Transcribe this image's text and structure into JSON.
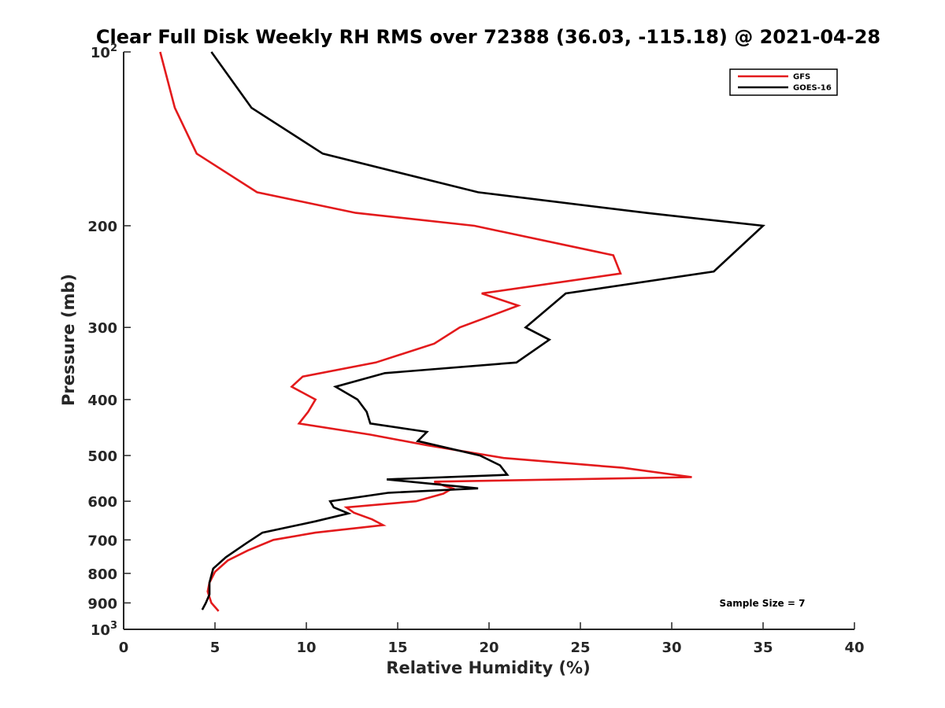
{
  "chart_data": {
    "type": "line",
    "title": "Clear Full Disk Weekly RH RMS over 72388 (36.03, -115.18) @ 2021-04-28",
    "xlabel": "Relative Humidity (%)",
    "ylabel": "Pressure (mb)",
    "xlim": [
      0,
      40
    ],
    "ylim": [
      100,
      1000
    ],
    "y_scale": "log",
    "y_reversed": true,
    "grid": false,
    "legend_position": "top-right",
    "x_ticks": [
      0,
      5,
      10,
      15,
      20,
      25,
      30,
      35,
      40
    ],
    "x_tick_labels": [
      "0",
      "5",
      "10",
      "15",
      "20",
      "25",
      "30",
      "35",
      "40"
    ],
    "y_ticks": [
      {
        "value": 100,
        "base": "10",
        "exp": "2"
      },
      {
        "value": 200,
        "base": "200",
        "exp": ""
      },
      {
        "value": 300,
        "base": "300",
        "exp": ""
      },
      {
        "value": 400,
        "base": "400",
        "exp": ""
      },
      {
        "value": 500,
        "base": "500",
        "exp": ""
      },
      {
        "value": 600,
        "base": "600",
        "exp": ""
      },
      {
        "value": 700,
        "base": "700",
        "exp": ""
      },
      {
        "value": 800,
        "base": "800",
        "exp": ""
      },
      {
        "value": 900,
        "base": "900",
        "exp": ""
      },
      {
        "value": 1000,
        "base": "10",
        "exp": "3"
      }
    ],
    "annotation": "Sample Size = 7",
    "series": [
      {
        "name": "GFS",
        "color": "#e31a1c",
        "points": [
          [
            2.0,
            100
          ],
          [
            2.8,
            125
          ],
          [
            4.0,
            150
          ],
          [
            7.3,
            175
          ],
          [
            12.7,
            190
          ],
          [
            19.2,
            200
          ],
          [
            26.8,
            225
          ],
          [
            27.2,
            242
          ],
          [
            19.6,
            262
          ],
          [
            21.6,
            275
          ],
          [
            18.4,
            300
          ],
          [
            17.0,
            320
          ],
          [
            13.8,
            345
          ],
          [
            9.8,
            365
          ],
          [
            9.2,
            380
          ],
          [
            10.5,
            400
          ],
          [
            10.1,
            420
          ],
          [
            9.6,
            440
          ],
          [
            13.5,
            460
          ],
          [
            16.6,
            480
          ],
          [
            20.8,
            505
          ],
          [
            27.3,
            525
          ],
          [
            31.1,
            545
          ],
          [
            17.0,
            555
          ],
          [
            17.6,
            565
          ],
          [
            18.0,
            570
          ],
          [
            17.5,
            582
          ],
          [
            16.0,
            600
          ],
          [
            12.2,
            615
          ],
          [
            12.6,
            628
          ],
          [
            13.6,
            645
          ],
          [
            14.2,
            660
          ],
          [
            10.5,
            680
          ],
          [
            8.2,
            700
          ],
          [
            6.8,
            730
          ],
          [
            5.7,
            760
          ],
          [
            5.0,
            795
          ],
          [
            4.7,
            830
          ],
          [
            4.6,
            860
          ],
          [
            4.8,
            900
          ],
          [
            5.2,
            930
          ]
        ]
      },
      {
        "name": "GOES-16",
        "color": "#000000",
        "points": [
          [
            4.8,
            100
          ],
          [
            7.0,
            125
          ],
          [
            10.9,
            150
          ],
          [
            19.4,
            175
          ],
          [
            28.6,
            190
          ],
          [
            35.0,
            200
          ],
          [
            32.3,
            240
          ],
          [
            24.2,
            262
          ],
          [
            22.0,
            300
          ],
          [
            23.3,
            315
          ],
          [
            21.5,
            345
          ],
          [
            14.3,
            360
          ],
          [
            11.6,
            380
          ],
          [
            12.8,
            400
          ],
          [
            13.3,
            420
          ],
          [
            13.5,
            440
          ],
          [
            16.6,
            455
          ],
          [
            16.1,
            472
          ],
          [
            19.5,
            500
          ],
          [
            20.6,
            520
          ],
          [
            21.0,
            540
          ],
          [
            14.4,
            550
          ],
          [
            19.4,
            570
          ],
          [
            14.5,
            580
          ],
          [
            11.3,
            600
          ],
          [
            11.5,
            615
          ],
          [
            12.3,
            630
          ],
          [
            10.5,
            650
          ],
          [
            7.6,
            680
          ],
          [
            6.7,
            710
          ],
          [
            5.6,
            750
          ],
          [
            4.9,
            785
          ],
          [
            4.7,
            830
          ],
          [
            4.7,
            870
          ],
          [
            4.5,
            900
          ],
          [
            4.3,
            925
          ]
        ]
      }
    ]
  }
}
